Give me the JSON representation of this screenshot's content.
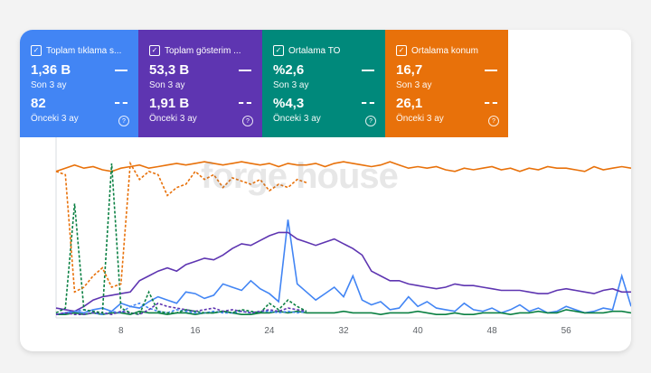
{
  "tiles": [
    {
      "title": "Toplam tıklama s...",
      "value_current": "1,36 B",
      "label_current": "Son 3 ay",
      "value_previous": "82",
      "label_previous": "Önceki 3 ay",
      "color": "#4285f4"
    },
    {
      "title": "Toplam gösterim ...",
      "value_current": "53,3 B",
      "label_current": "Son 3 ay",
      "value_previous": "1,91 B",
      "label_previous": "Önceki 3 ay",
      "color": "#5e35b1"
    },
    {
      "title": "Ortalama TO",
      "value_current": "%2,6",
      "label_current": "Son 3 ay",
      "value_previous": "%4,3",
      "label_previous": "Önceki 3 ay",
      "color": "#00897b"
    },
    {
      "title": "Ortalama konum",
      "value_current": "16,7",
      "label_current": "Son 3 ay",
      "value_previous": "26,1",
      "label_previous": "Önceki 3 ay",
      "color": "#e8710a"
    }
  ],
  "watermark": "forge house",
  "chart_data": {
    "type": "line",
    "x_ticks": [
      "8",
      "16",
      "24",
      "32",
      "40",
      "48",
      "56"
    ],
    "series": [
      {
        "name": "Toplam tıklama",
        "style": "solid",
        "color": "#4285f4",
        "values": [
          1,
          2,
          3,
          2,
          4,
          5,
          3,
          8,
          6,
          5,
          9,
          12,
          10,
          8,
          15,
          14,
          11,
          13,
          20,
          18,
          16,
          22,
          17,
          14,
          9,
          60,
          20,
          15,
          10,
          14,
          18,
          12,
          25,
          10,
          7,
          9,
          4,
          5,
          12,
          6,
          9,
          5,
          4,
          3,
          8,
          4,
          3,
          5,
          2,
          4,
          7,
          3,
          5,
          2,
          3,
          6,
          4,
          2,
          3,
          5,
          4,
          25,
          6
        ]
      },
      {
        "name": "Toplam gösterim",
        "style": "solid",
        "color": "#5e35b1",
        "values": [
          5,
          4,
          3,
          6,
          10,
          12,
          13,
          14,
          15,
          22,
          25,
          28,
          30,
          28,
          32,
          34,
          36,
          35,
          38,
          42,
          45,
          44,
          47,
          50,
          52,
          52,
          48,
          46,
          44,
          46,
          48,
          45,
          42,
          38,
          28,
          25,
          22,
          22,
          20,
          19,
          18,
          17,
          18,
          20,
          19,
          19,
          18,
          17,
          16,
          16,
          16,
          15,
          14,
          14,
          16,
          17,
          16,
          15,
          14,
          16,
          17,
          15,
          15
        ]
      },
      {
        "name": "Ortalama TO",
        "style": "solid",
        "color": "#0b8043",
        "values": [
          1,
          1,
          2,
          1,
          2,
          1,
          2,
          2,
          1,
          3,
          2,
          2,
          1,
          2,
          2,
          1,
          2,
          2,
          3,
          2,
          1,
          1,
          2,
          2,
          3,
          2,
          3,
          2,
          2,
          2,
          2,
          3,
          2,
          2,
          2,
          1,
          2,
          2,
          2,
          3,
          2,
          1,
          1,
          2,
          1,
          1,
          2,
          2,
          2,
          1,
          2,
          2,
          3,
          2,
          2,
          4,
          3,
          2,
          2,
          2,
          3,
          3,
          2
        ]
      },
      {
        "name": "Ortalama konum",
        "style": "solid",
        "color": "#e8710a",
        "values": [
          90,
          92,
          94,
          92,
          93,
          91,
          90,
          92,
          93,
          94,
          92,
          93,
          94,
          95,
          94,
          95,
          96,
          95,
          94,
          95,
          96,
          95,
          94,
          95,
          93,
          95,
          94,
          94,
          95,
          93,
          95,
          96,
          95,
          94,
          93,
          94,
          96,
          94,
          92,
          93,
          92,
          93,
          91,
          90,
          92,
          91,
          92,
          93,
          91,
          92,
          90,
          92,
          91,
          93,
          92,
          92,
          91,
          90,
          93,
          91,
          92,
          93,
          92
        ]
      },
      {
        "name": "Toplam tıklama (önceki)",
        "style": "dashed",
        "color": "#4285f4",
        "values": [
          1,
          2,
          3,
          4,
          2,
          1,
          3,
          2,
          6,
          8,
          5,
          3,
          2,
          4,
          3,
          2,
          2,
          3,
          2,
          2,
          3,
          2,
          3,
          3,
          2,
          3,
          2,
          3
        ]
      },
      {
        "name": "Toplam gösterim (önceki)",
        "style": "dashed",
        "color": "#5e35b1",
        "values": [
          1,
          2,
          1,
          1,
          2,
          2,
          1,
          3,
          2,
          1,
          4,
          8,
          6,
          5,
          4,
          3,
          4,
          5,
          3,
          4,
          3,
          2,
          3,
          4,
          3,
          5,
          4,
          3
        ]
      },
      {
        "name": "Ortalama TO (önceki)",
        "style": "dashed",
        "color": "#0b8043",
        "values": [
          2,
          5,
          70,
          4,
          3,
          2,
          95,
          5,
          2,
          1,
          15,
          3,
          2,
          2,
          4,
          3,
          2,
          2,
          3,
          2,
          4,
          3,
          2,
          8,
          4,
          10,
          6,
          3
        ]
      },
      {
        "name": "Ortalama konum (önceki)",
        "style": "dashed",
        "color": "#e8710a",
        "values": [
          90,
          88,
          15,
          18,
          25,
          30,
          18,
          20,
          95,
          85,
          90,
          88,
          75,
          80,
          82,
          90,
          85,
          88,
          80,
          86,
          84,
          82,
          85,
          78,
          82,
          80,
          85,
          83
        ]
      }
    ],
    "ylim": [
      0,
      100
    ],
    "grid": false
  }
}
